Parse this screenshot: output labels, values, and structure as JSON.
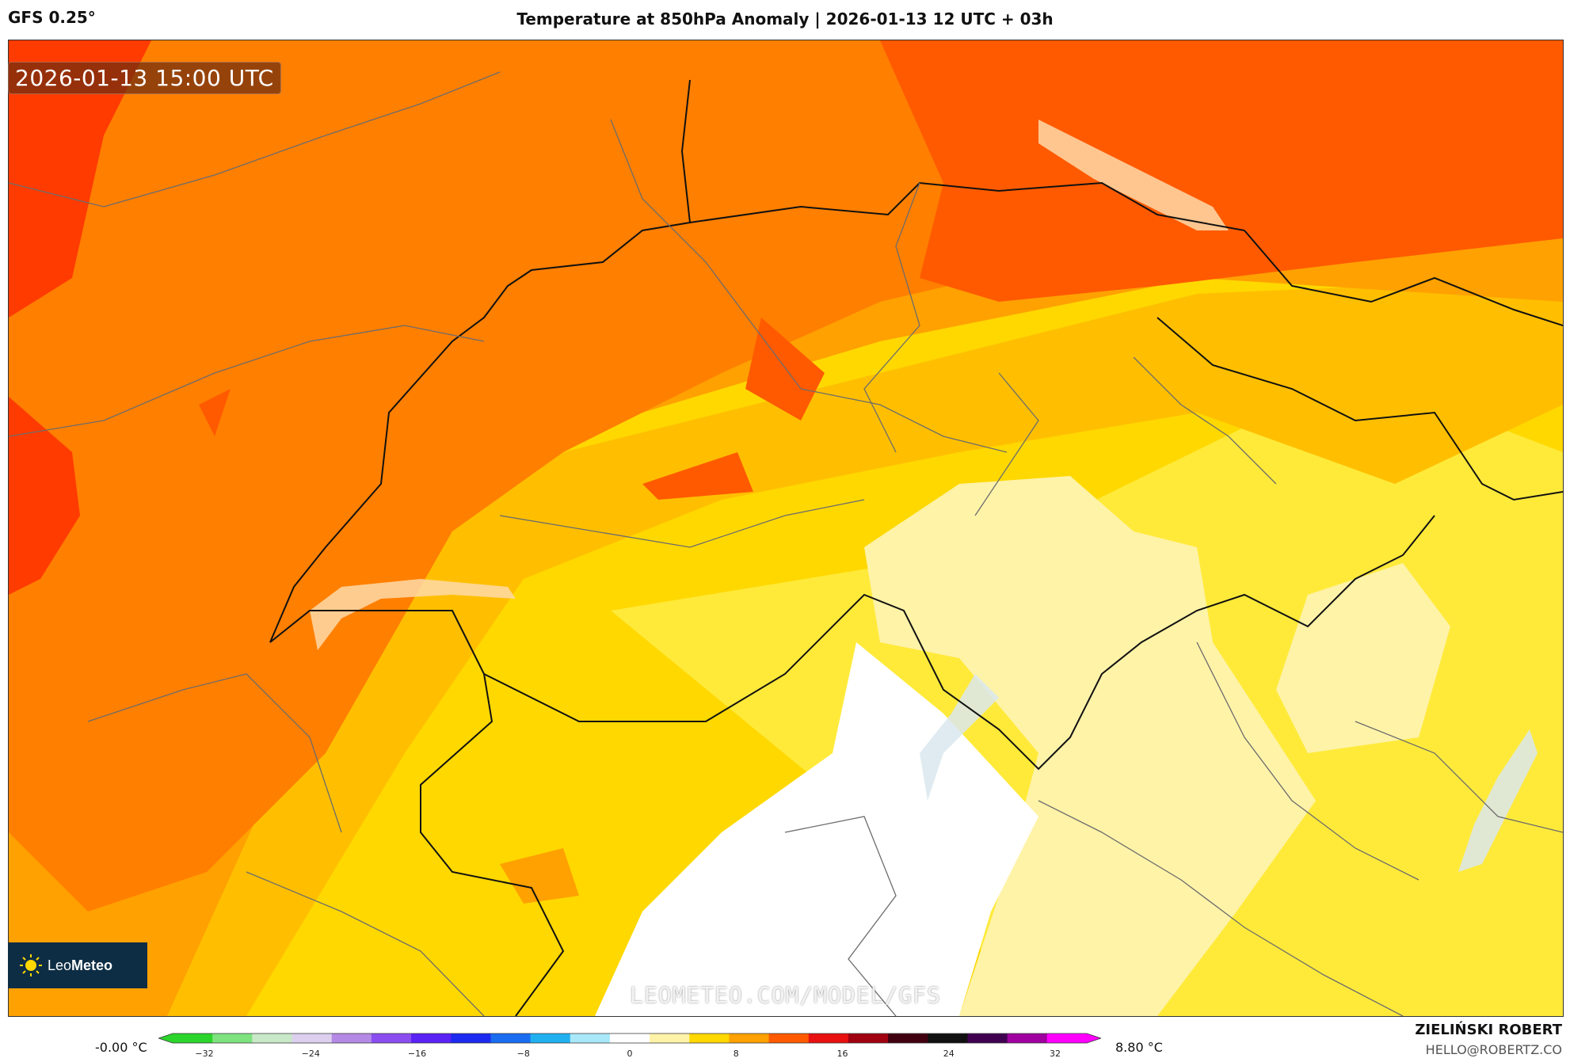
{
  "header": {
    "model": "GFS 0.25°",
    "title": "Temperature at 850hPa Anomaly | 2026-01-13 12 UTC + 03h"
  },
  "map": {
    "valid_time": "2026-01-13 15:00 UTC",
    "watermark": "LEOMETEO.COM/MODEL/GFS",
    "logo_text_regular": "Leo",
    "logo_text_bold": "Meteo",
    "colors": {
      "deep_red": "#ff3b00",
      "red_orange": "#ff5a00",
      "orange": "#ff7f00",
      "light_orange": "#ffa100",
      "amber": "#ffbf00",
      "yellow": "#ffd800",
      "bright_yellow": "#ffea3a",
      "pale_yellow": "#fff3a8",
      "white": "#ffffff"
    }
  },
  "legend": {
    "min_label": "-0.00 °C",
    "max_label": "8.80 °C",
    "ticks": [
      "−32",
      "−24",
      "−16",
      "−8",
      "0",
      "8",
      "16",
      "24",
      "32"
    ],
    "stops": [
      "#2bd52b",
      "#7ee37e",
      "#c8e8c8",
      "#dcd0ee",
      "#b48ae6",
      "#8a4ef0",
      "#5a22f5",
      "#1d2af0",
      "#1a6cf0",
      "#20b0f0",
      "#a8e8f8",
      "#ffffff",
      "#fff3a8",
      "#ffd800",
      "#ffa100",
      "#ff5a00",
      "#e81010",
      "#a00010",
      "#400010",
      "#101010",
      "#400050",
      "#a000a0",
      "#ff00ff"
    ]
  },
  "footer": {
    "author": "ZIELIŃSKI ROBERT",
    "email": "HELLO@ROBERTZ.CO"
  }
}
